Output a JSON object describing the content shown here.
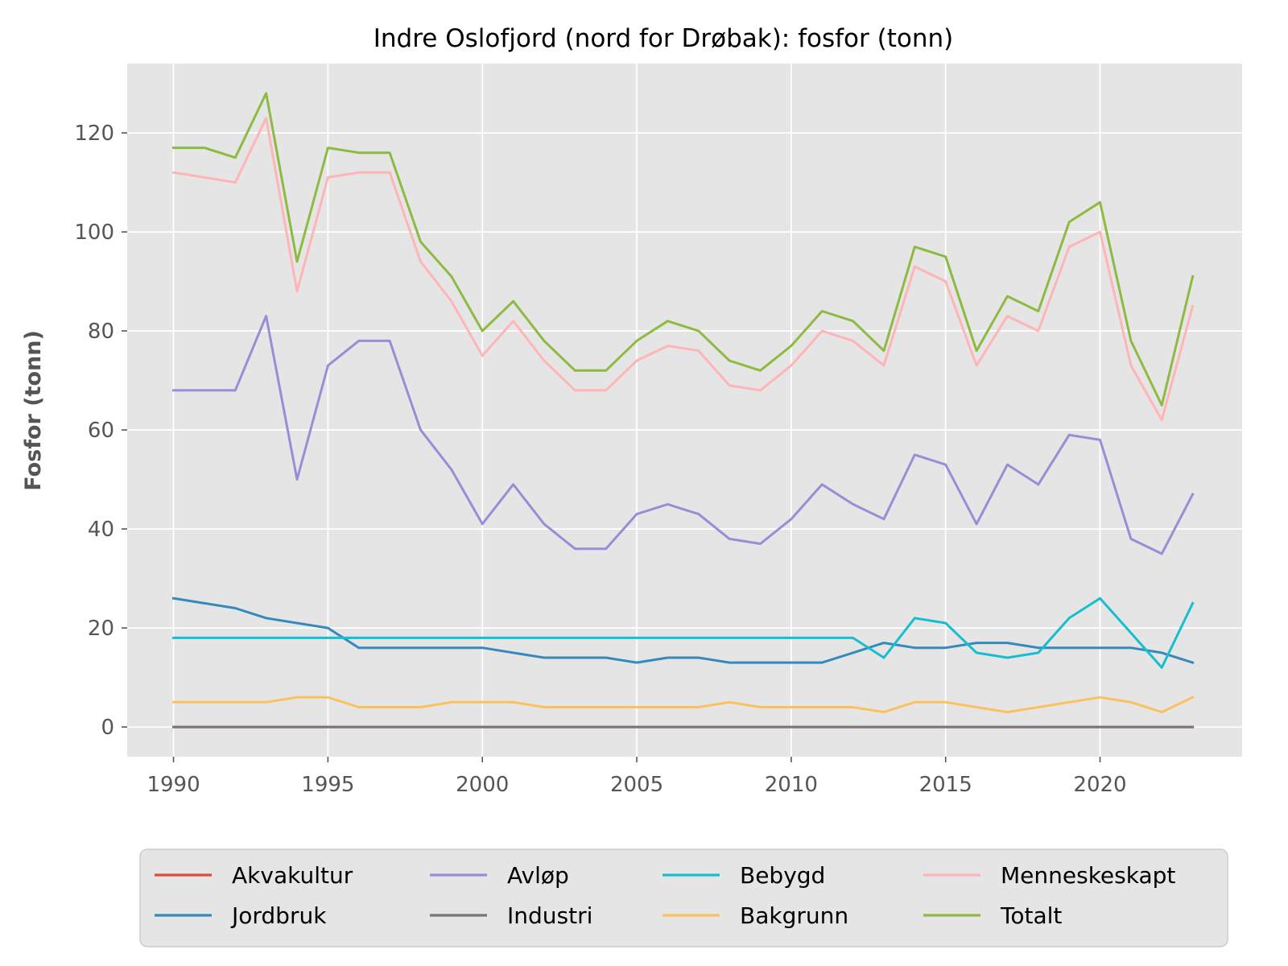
{
  "chart_data": {
    "type": "line",
    "title": "Indre Oslofjord (nord for Drøbak): fosfor (tonn)",
    "xlabel": "",
    "ylabel": "Fosfor (tonn)",
    "xlim": [
      1988.5,
      2024.6
    ],
    "ylim": [
      -6,
      134
    ],
    "xticks": [
      1990,
      1995,
      2000,
      2005,
      2010,
      2015,
      2020
    ],
    "yticks": [
      0,
      20,
      40,
      60,
      80,
      100,
      120
    ],
    "grid": true,
    "legend_position": "bottom",
    "x": [
      1990,
      1991,
      1992,
      1993,
      1994,
      1995,
      1996,
      1997,
      1998,
      1999,
      2000,
      2001,
      2002,
      2003,
      2004,
      2005,
      2006,
      2007,
      2008,
      2009,
      2010,
      2011,
      2012,
      2013,
      2014,
      2015,
      2016,
      2017,
      2018,
      2019,
      2020,
      2021,
      2022,
      2023
    ],
    "series": [
      {
        "name": "Akvakultur",
        "color": "#E24A33",
        "values": [
          0,
          0,
          0,
          0,
          0,
          0,
          0,
          0,
          0,
          0,
          0,
          0,
          0,
          0,
          0,
          0,
          0,
          0,
          0,
          0,
          0,
          0,
          0,
          0,
          0,
          0,
          0,
          0,
          0,
          0,
          0,
          0,
          0,
          0
        ]
      },
      {
        "name": "Jordbruk",
        "color": "#348ABD",
        "values": [
          26,
          25,
          24,
          22,
          21,
          20,
          16,
          16,
          16,
          16,
          16,
          15,
          14,
          14,
          14,
          13,
          14,
          14,
          13,
          13,
          13,
          13,
          15,
          17,
          16,
          16,
          17,
          17,
          16,
          16,
          16,
          16,
          15,
          13
        ]
      },
      {
        "name": "Avløp",
        "color": "#988ED5",
        "values": [
          68,
          68,
          68,
          83,
          50,
          73,
          78,
          78,
          60,
          52,
          41,
          49,
          41,
          36,
          36,
          43,
          45,
          43,
          38,
          37,
          42,
          49,
          45,
          42,
          55,
          53,
          41,
          53,
          49,
          59,
          58,
          38,
          35,
          47
        ]
      },
      {
        "name": "Industri",
        "color": "#777777",
        "values": [
          0,
          0,
          0,
          0,
          0,
          0,
          0,
          0,
          0,
          0,
          0,
          0,
          0,
          0,
          0,
          0,
          0,
          0,
          0,
          0,
          0,
          0,
          0,
          0,
          0,
          0,
          0,
          0,
          0,
          0,
          0,
          0,
          0,
          0
        ]
      },
      {
        "name": "Bebygd",
        "color": "#17BECF",
        "values": [
          18,
          18,
          18,
          18,
          18,
          18,
          18,
          18,
          18,
          18,
          18,
          18,
          18,
          18,
          18,
          18,
          18,
          18,
          18,
          18,
          18,
          18,
          18,
          14,
          22,
          21,
          15,
          14,
          15,
          22,
          26,
          19,
          12,
          25
        ]
      },
      {
        "name": "Bakgrunn",
        "color": "#FBC15E",
        "values": [
          5,
          5,
          5,
          5,
          6,
          6,
          4,
          4,
          4,
          5,
          5,
          5,
          4,
          4,
          4,
          4,
          4,
          4,
          5,
          4,
          4,
          4,
          4,
          3,
          5,
          5,
          4,
          3,
          4,
          5,
          6,
          5,
          3,
          6
        ]
      },
      {
        "name": "Menneskeskapt",
        "color": "#FFB5B8",
        "values": [
          112,
          111,
          110,
          123,
          88,
          111,
          112,
          112,
          94,
          86,
          75,
          82,
          74,
          68,
          68,
          74,
          77,
          76,
          69,
          68,
          73,
          80,
          78,
          73,
          93,
          90,
          73,
          83,
          80,
          97,
          100,
          73,
          62,
          85
        ]
      },
      {
        "name": "Totalt",
        "color": "#8EBA42",
        "values": [
          117,
          117,
          115,
          128,
          94,
          117,
          116,
          116,
          98,
          91,
          80,
          86,
          78,
          72,
          72,
          78,
          82,
          80,
          74,
          72,
          77,
          84,
          82,
          76,
          97,
          95,
          76,
          87,
          84,
          102,
          106,
          78,
          65,
          91
        ]
      }
    ]
  }
}
